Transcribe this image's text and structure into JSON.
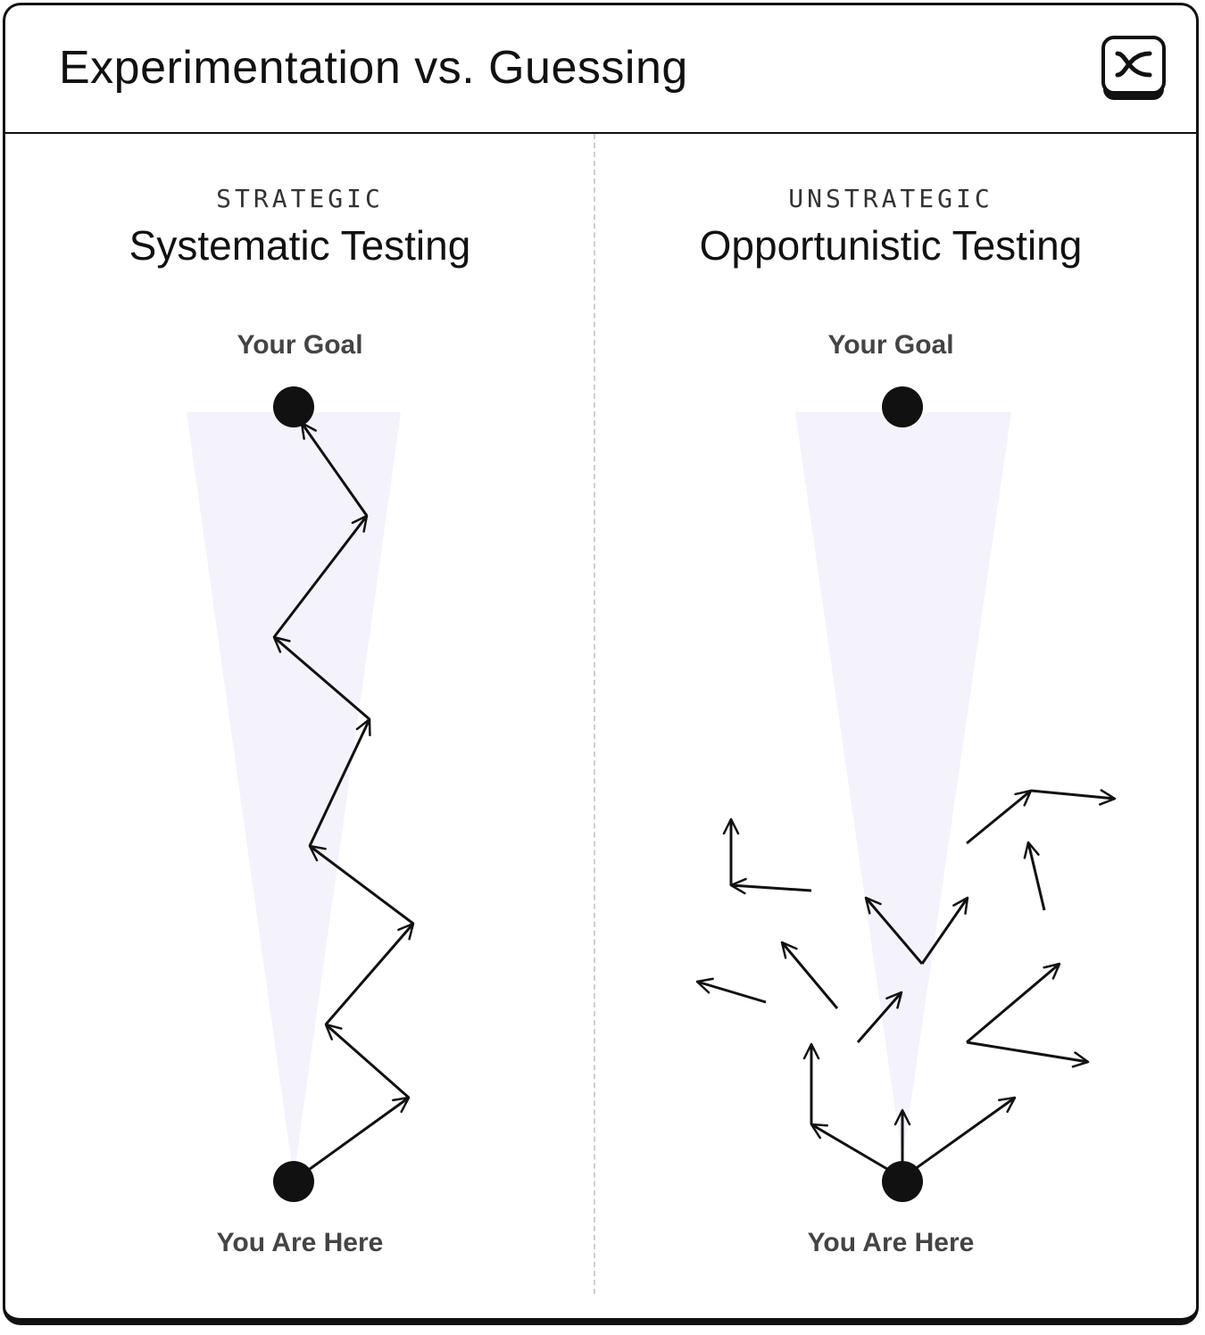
{
  "header": {
    "title": "Experimentation vs. Guessing",
    "logo_icon": "brand-logo-icon"
  },
  "left": {
    "kicker": "STRATEGIC",
    "heading": "Systematic Testing",
    "goal_label": "Your Goal",
    "start_label": "You Are Here"
  },
  "right": {
    "kicker": "UNSTRATEGIC",
    "heading": "Opportunistic Testing",
    "goal_label": "Your Goal",
    "start_label": "You Are Here"
  },
  "colors": {
    "ink": "#111111",
    "cone": "#f4f2fb",
    "divider": "#cfcfcf",
    "label": "#444444"
  }
}
